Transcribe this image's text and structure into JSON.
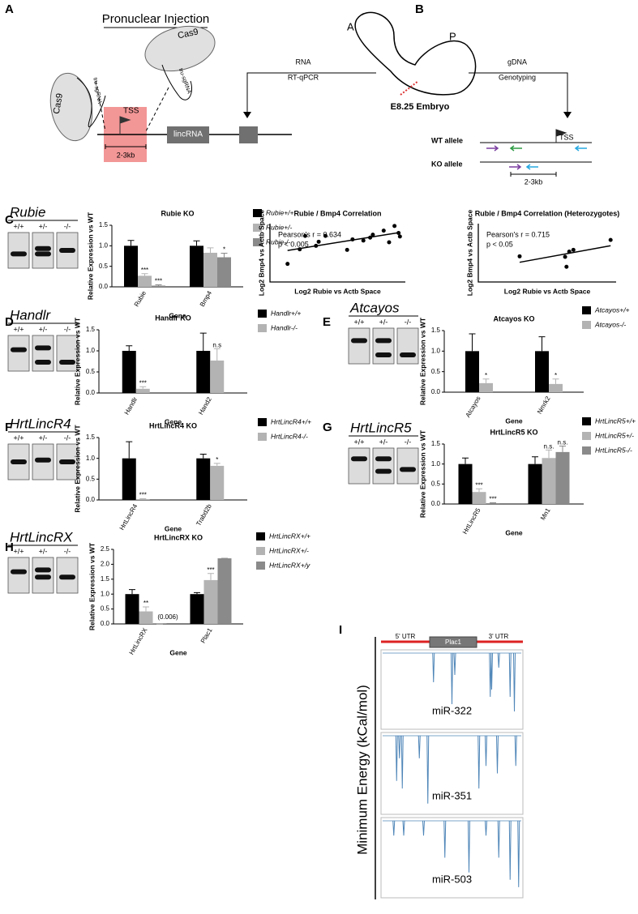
{
  "figure": {
    "panel_letters": [
      "A",
      "B",
      "C",
      "D",
      "E",
      "F",
      "G",
      "H",
      "I"
    ]
  },
  "panel_a": {
    "title": "Pronuclear Injection",
    "cas9": [
      "Cas9",
      "Cas9"
    ],
    "sgrna": [
      "tru-sgRNA",
      "tru-sgRNA"
    ],
    "tss": "TSS",
    "size": "2-3kb",
    "lincrna": "lincRNA"
  },
  "panel_b": {
    "anterior": "A",
    "posterior": "P",
    "embryo": "E8.25 Embryo",
    "left_arrow": [
      "RNA",
      "RT-qPCR"
    ],
    "right_arrow": [
      "gDNA",
      "Genotyping"
    ],
    "wt": "WT allele",
    "ko": "KO allele",
    "tss": "TSS",
    "size": "2-3kb"
  },
  "gels": [
    {
      "title": "Rubie",
      "lanes": [
        "+/+",
        "+/-",
        "-/-"
      ]
    },
    {
      "title": "Handlr",
      "lanes": [
        "+/+",
        "+/-",
        "-/-"
      ]
    },
    {
      "title": "Atcayos",
      "lanes": [
        "+/+",
        "+/-",
        "-/-"
      ]
    },
    {
      "title": "HrtLincR4",
      "lanes": [
        "+/+",
        "+/-",
        "-/-"
      ]
    },
    {
      "title": "HrtLincR5",
      "lanes": [
        "+/+",
        "+/-",
        "-/-"
      ]
    },
    {
      "title": "HrtLincRX",
      "lanes": [
        "+/+",
        "+/-",
        "-/-"
      ]
    }
  ],
  "chart_data": [
    {
      "type": "bar",
      "title": "Rubie KO",
      "ylabel": "Relative Expression vs WT",
      "xlabel": "Gene",
      "categories": [
        "Rubie",
        "Bmp4"
      ],
      "series": [
        {
          "name": "Rubie+/+",
          "color": "#000000",
          "values": [
            1.0,
            1.0
          ],
          "errors": [
            0.13,
            0.12
          ],
          "significance": [
            null,
            null
          ]
        },
        {
          "name": "Rubie+/-",
          "color": "#b3b3b3",
          "values": [
            0.27,
            0.83
          ],
          "errors": [
            0.05,
            0.12
          ],
          "significance": [
            "***",
            null
          ]
        },
        {
          "name": "Rubie-/-",
          "color": "#8a8a8a",
          "values": [
            0.03,
            0.72
          ],
          "errors": [
            0.02,
            0.1
          ],
          "significance": [
            "***",
            "*"
          ]
        }
      ],
      "ylim": [
        0,
        1.5
      ],
      "yticks": [
        {
          "value": 0,
          "label": "0.0"
        },
        0.5,
        {
          "value": 1,
          "label": "1.0"
        },
        1.5
      ]
    },
    {
      "type": "scatter",
      "title": "Rubie / Bmp4 Correlation",
      "xlabel": "Log2 Rubie vs Actb Space",
      "ylabel": "Log2 Bmp4 vs Actb Space",
      "annotations": [
        "Pearson's r = 0.634",
        "p < 0.005"
      ],
      "x": [
        1.3,
        2.2,
        2.6,
        3.4,
        3.6,
        4.1,
        5.7,
        6.1,
        6.9,
        7.4,
        7.6,
        8.4,
        8.8,
        9.2,
        9.5,
        9.6
      ],
      "y": [
        3.1,
        5.6,
        7.9,
        6.2,
        6.9,
        7.9,
        5.5,
        7.3,
        7.1,
        7.6,
        8.1,
        8.8,
        6.8,
        9.6,
        8.4,
        7.8
      ],
      "xlim": [
        0,
        10
      ],
      "ylim": [
        0,
        10
      ],
      "trendline": true
    },
    {
      "type": "scatter",
      "title": "Rubie / Bmp4 Correlation (Heterozygotes)",
      "xlabel": "Log2 Rubie vs Actb Space",
      "ylabel": "Log2 Bmp4 vs Actb Space",
      "annotations": [
        "Pearson's r = 0.715",
        "p < 0.05"
      ],
      "x": [
        3.0,
        6.3,
        6.6,
        6.9,
        6.4,
        9.6
      ],
      "y": [
        4.4,
        4.3,
        5.2,
        5.5,
        2.6,
        7.2
      ],
      "xlim": [
        0,
        10
      ],
      "ylim": [
        0,
        10
      ],
      "trendline": true
    },
    {
      "type": "bar",
      "title": "Handlr KO",
      "ylabel": "Relative Expression vs WT",
      "xlabel": "Gene",
      "categories": [
        "Handlr",
        "Hand2"
      ],
      "series": [
        {
          "name": "Handlr+/+",
          "color": "#000000",
          "values": [
            1.0,
            1.0
          ],
          "errors": [
            0.12,
            0.42
          ],
          "significance": [
            null,
            null
          ]
        },
        {
          "name": "Handlr-/-",
          "color": "#b3b3b3",
          "values": [
            0.1,
            0.77
          ],
          "errors": [
            0.05,
            0.28
          ],
          "significance": [
            "***",
            "n.s"
          ]
        }
      ],
      "ylim": [
        0,
        1.5
      ],
      "yticks": [
        {
          "value": 0,
          "label": "0.0"
        },
        0.5,
        {
          "value": 1,
          "label": "1.0"
        },
        1.5
      ]
    },
    {
      "type": "bar",
      "title": "Atcayos KO",
      "ylabel": "Relative Expression vs WT",
      "xlabel": "Gene",
      "categories": [
        "Atcayos",
        "Nmrk2"
      ],
      "series": [
        {
          "name": "Atcayos+/+",
          "color": "#000000",
          "values": [
            1.0,
            1.0
          ],
          "errors": [
            0.42,
            0.35
          ],
          "significance": [
            null,
            null
          ]
        },
        {
          "name": "Atcayos-/-",
          "color": "#b3b3b3",
          "values": [
            0.22,
            0.2
          ],
          "errors": [
            0.1,
            0.12
          ],
          "significance": [
            "*",
            "*"
          ]
        }
      ],
      "ylim": [
        0,
        1.5
      ],
      "yticks": [
        {
          "value": 0,
          "label": "0.0"
        },
        0.5,
        {
          "value": 1,
          "label": "1.0"
        },
        1.5
      ]
    },
    {
      "type": "bar",
      "title": "HrtLincR4 KO",
      "ylabel": "Relative Expression vs WT",
      "xlabel": "Gene",
      "categories": [
        "HrtLincR4",
        "Trabd2b"
      ],
      "series": [
        {
          "name": "HrtLincR4+/+",
          "color": "#000000",
          "values": [
            1.0,
            1.0
          ],
          "errors": [
            0.4,
            0.1
          ],
          "significance": [
            null,
            null
          ]
        },
        {
          "name": "HrtLincR4-/-",
          "color": "#b3b3b3",
          "values": [
            0.02,
            0.82
          ],
          "errors": [
            0.01,
            0.06
          ],
          "significance": [
            "***",
            "*"
          ]
        }
      ],
      "ylim": [
        0,
        1.5
      ],
      "yticks": [
        {
          "value": 0,
          "label": "0.0"
        },
        0.5,
        {
          "value": 1,
          "label": "1.0"
        },
        1.5
      ]
    },
    {
      "type": "bar",
      "title": "HrtLincR5 KO",
      "ylabel": "Relative Expression vs WT",
      "xlabel": "Gene",
      "categories": [
        "HrtLincR5",
        "Mn1"
      ],
      "series": [
        {
          "name": "HrtLincR5+/+",
          "color": "#000000",
          "values": [
            1.0,
            1.0
          ],
          "errors": [
            0.15,
            0.18
          ],
          "significance": [
            null,
            null
          ]
        },
        {
          "name": "HrtLincR5+/-",
          "color": "#b3b3b3",
          "values": [
            0.3,
            1.15
          ],
          "errors": [
            0.08,
            0.2
          ],
          "significance": [
            "***",
            "n.s."
          ]
        },
        {
          "name": "HrtLincR5-/-",
          "color": "#8a8a8a",
          "values": [
            0.02,
            1.3
          ],
          "errors": [
            0.01,
            0.15
          ],
          "significance": [
            "***",
            "n.s."
          ]
        }
      ],
      "ylim": [
        0,
        1.5
      ],
      "yticks": [
        {
          "value": 0,
          "label": "0.0"
        },
        0.5,
        {
          "value": 1,
          "label": "1.0"
        },
        1.5
      ]
    },
    {
      "type": "bar",
      "title": "HrtLincRX KO",
      "ylabel": "Relative Expression vs WT",
      "xlabel": "Gene",
      "categories": [
        "HrtLincRX",
        "Plac1"
      ],
      "series": [
        {
          "name": "HrtLincRX+/+",
          "color": "#000000",
          "values": [
            1.0,
            1.0
          ],
          "errors": [
            0.15,
            0.05
          ],
          "significance": [
            null,
            null
          ]
        },
        {
          "name": "HrtLincRX+/-",
          "color": "#b3b3b3",
          "values": [
            0.42,
            1.47
          ],
          "errors": [
            0.15,
            0.22
          ],
          "significance": [
            "**",
            "***"
          ]
        },
        {
          "name": "HrtLincRX+/y",
          "color": "#8a8a8a",
          "values": [
            0.006,
            2.2
          ],
          "errors": [
            0,
            0
          ],
          "significance": [
            "(0.006)",
            null
          ]
        }
      ],
      "ylim": [
        0,
        2.5
      ],
      "yticks": [
        {
          "value": 0,
          "label": "0.0"
        },
        0.5,
        {
          "value": 1,
          "label": "1.0"
        },
        1.5,
        {
          "value": 2,
          "label": "2.0"
        },
        2.5
      ]
    }
  ],
  "panel_i": {
    "ylabel": "Minimum Energy (kCal/mol)",
    "regions": [
      "5' UTR",
      "Plac1",
      "3' UTR"
    ],
    "xlim": [
      0,
      100
    ],
    "ylim": [
      -10,
      0
    ],
    "plots": [
      {
        "name": "miR-322",
        "x": [
          37,
          50,
          52,
          77,
          78,
          83,
          91,
          94
        ],
        "values": [
          -4,
          -7,
          -3,
          -6,
          -5,
          -2,
          -6,
          -8
        ]
      },
      {
        "name": "miR-351",
        "x": [
          11,
          13,
          15,
          27,
          33,
          69,
          74,
          82,
          95
        ],
        "values": [
          -6,
          -3,
          -7,
          -3,
          -9,
          -7,
          -4,
          -5,
          -4
        ]
      },
      {
        "name": "miR-503",
        "x": [
          9,
          16,
          30,
          45,
          62,
          74,
          83,
          91,
          97
        ],
        "values": [
          -2,
          -2,
          -2,
          -5,
          -7,
          -2,
          -5,
          -8,
          -9
        ]
      }
    ]
  }
}
